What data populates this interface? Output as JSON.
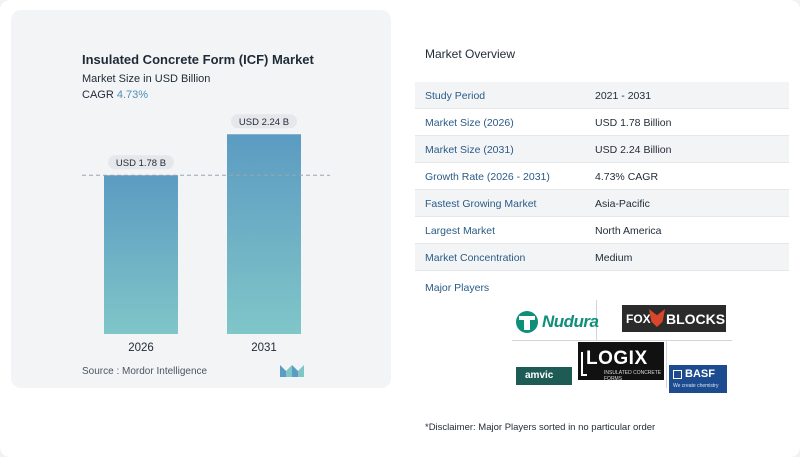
{
  "chart_data": {
    "type": "bar",
    "title": "Insulated Concrete Form (ICF) Market",
    "subtitle": "Market Size in USD Billion",
    "cagr_label": "CAGR",
    "cagr_value": "4.73%",
    "categories": [
      "2026",
      "2031"
    ],
    "values": [
      1.78,
      2.24
    ],
    "data_labels": [
      "USD 1.78 B",
      "USD 2.24 B"
    ],
    "ylim": [
      0,
      2.4
    ],
    "colors": [
      "#5c9bc2",
      "#7fc6c8"
    ],
    "reference_line_value": 1.78
  },
  "source_text": "Source :  Mordor Intelligence",
  "overview": {
    "title": "Market Overview",
    "rows": [
      {
        "label": "Study Period",
        "value": "2021 - 2031"
      },
      {
        "label": "Market Size (2026)",
        "value": "USD 1.78 Billion"
      },
      {
        "label": "Market Size (2031)",
        "value": "USD 2.24 Billion"
      },
      {
        "label": "Growth Rate (2026 - 2031)",
        "value": "4.73% CAGR"
      },
      {
        "label": "Fastest Growing Market",
        "value": "Asia-Pacific"
      },
      {
        "label": "Largest Market",
        "value": "North America"
      },
      {
        "label": "Market Concentration",
        "value": "Medium"
      }
    ],
    "players_title": "Major Players",
    "disclaimer": "*Disclaimer: Major Players sorted in no particular order"
  },
  "logos": {
    "nudura": "Nudura",
    "fox": "FOX",
    "blocks": "BLOCKS",
    "logix": "LOGIX",
    "logix_sub": "INSULATED CONCRETE FORMS",
    "amvic": "amvic",
    "basf": "BASF",
    "basf_sub": "We create chemistry"
  }
}
